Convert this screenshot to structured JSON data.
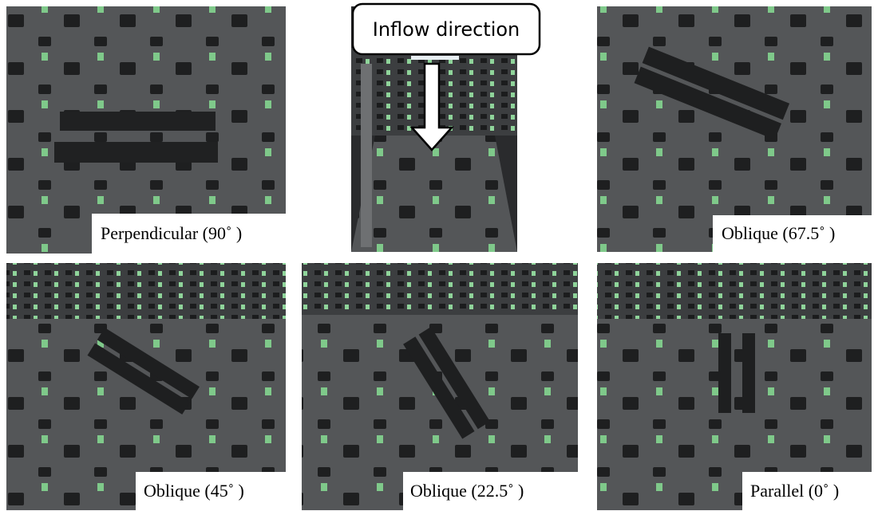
{
  "caption": "Inflow direction",
  "panels": [
    {
      "label": "Perpendicular (90˚ )"
    },
    {
      "label": "Oblique (67.5˚ )"
    },
    {
      "label": "Oblique (45˚ )"
    },
    {
      "label": "Oblique (22.5˚ )"
    },
    {
      "label": "Parallel (0˚ )"
    }
  ]
}
